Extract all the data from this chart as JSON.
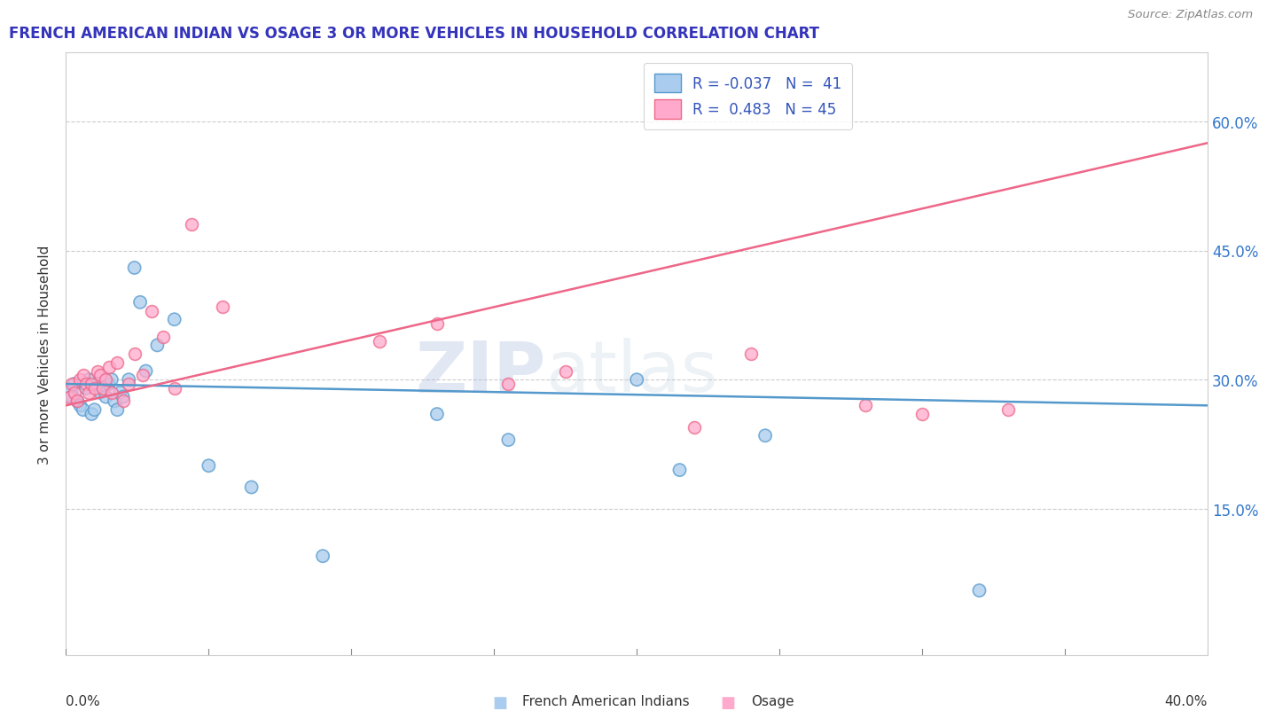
{
  "title": "FRENCH AMERICAN INDIAN VS OSAGE 3 OR MORE VEHICLES IN HOUSEHOLD CORRELATION CHART",
  "source": "Source: ZipAtlas.com",
  "ylabel": "3 or more Vehicles in Household",
  "ytick_vals": [
    0.0,
    0.15,
    0.3,
    0.45,
    0.6
  ],
  "ytick_labels_right": [
    "",
    "15.0%",
    "30.0%",
    "45.0%",
    "60.0%"
  ],
  "xlim": [
    0.0,
    0.4
  ],
  "ylim": [
    -0.02,
    0.68
  ],
  "color_blue_fill": "#aaccee",
  "color_blue_edge": "#5599cc",
  "color_blue_line": "#5599cc",
  "color_pink_fill": "#ffaacc",
  "color_pink_edge": "#ee6688",
  "color_pink_line": "#ee6688",
  "watermark_zip": "ZIP",
  "watermark_atlas": "atlas",
  "title_color": "#3333bb",
  "title_fontsize": 12,
  "french_x": [
    0.001,
    0.002,
    0.003,
    0.004,
    0.005,
    0.006,
    0.007,
    0.008,
    0.009,
    0.01,
    0.011,
    0.012,
    0.013,
    0.014,
    0.015,
    0.016,
    0.017,
    0.018,
    0.019,
    0.02,
    0.022,
    0.024,
    0.026,
    0.028,
    0.032,
    0.038,
    0.05,
    0.065,
    0.09,
    0.13,
    0.155,
    0.2,
    0.215,
    0.245,
    0.32
  ],
  "french_y": [
    0.285,
    0.28,
    0.295,
    0.275,
    0.27,
    0.265,
    0.29,
    0.3,
    0.26,
    0.265,
    0.295,
    0.285,
    0.29,
    0.28,
    0.295,
    0.3,
    0.275,
    0.265,
    0.285,
    0.28,
    0.3,
    0.43,
    0.39,
    0.31,
    0.34,
    0.37,
    0.2,
    0.175,
    0.095,
    0.26,
    0.23,
    0.3,
    0.195,
    0.235,
    0.055
  ],
  "french_sizes": [
    60,
    30,
    30,
    30,
    30,
    30,
    30,
    30,
    30,
    30,
    30,
    30,
    30,
    30,
    30,
    30,
    30,
    30,
    30,
    30,
    30,
    30,
    30,
    30,
    30,
    30,
    30,
    30,
    30,
    30,
    30,
    30,
    30,
    30,
    30
  ],
  "osage_x": [
    0.001,
    0.002,
    0.003,
    0.004,
    0.005,
    0.006,
    0.007,
    0.008,
    0.009,
    0.01,
    0.011,
    0.012,
    0.013,
    0.014,
    0.015,
    0.016,
    0.018,
    0.02,
    0.022,
    0.024,
    0.027,
    0.03,
    0.034,
    0.038,
    0.044,
    0.055,
    0.11,
    0.13,
    0.155,
    0.175,
    0.22,
    0.24,
    0.28,
    0.3,
    0.33
  ],
  "osage_y": [
    0.28,
    0.295,
    0.285,
    0.275,
    0.3,
    0.305,
    0.295,
    0.285,
    0.295,
    0.29,
    0.31,
    0.305,
    0.29,
    0.3,
    0.315,
    0.285,
    0.32,
    0.275,
    0.295,
    0.33,
    0.305,
    0.38,
    0.35,
    0.29,
    0.48,
    0.385,
    0.345,
    0.365,
    0.295,
    0.31,
    0.245,
    0.33,
    0.27,
    0.26,
    0.265
  ],
  "blue_trend_x0": 0.0,
  "blue_trend_y0": 0.295,
  "blue_trend_x1": 0.4,
  "blue_trend_y1": 0.27,
  "pink_trend_x0": 0.0,
  "pink_trend_y0": 0.27,
  "pink_trend_x1": 0.4,
  "pink_trend_y1": 0.575
}
